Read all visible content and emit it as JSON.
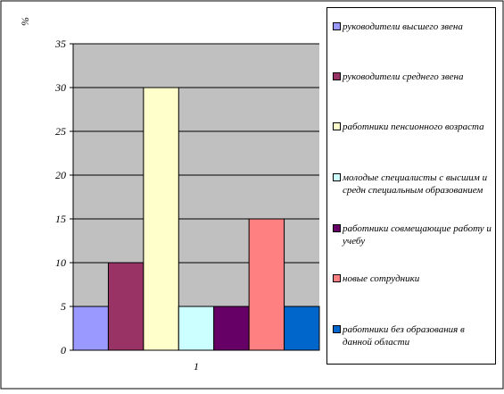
{
  "chart_data": {
    "type": "bar",
    "ylabel": "%",
    "xlabel": "",
    "categories": [
      "1"
    ],
    "ylim": [
      0,
      35
    ],
    "yticks": [
      0,
      5,
      10,
      15,
      20,
      25,
      30,
      35
    ],
    "grid": true,
    "legend_position": "right",
    "series": [
      {
        "name": "руководители высшего звена",
        "values": [
          5
        ],
        "color": "#9999ff"
      },
      {
        "name": "руководители среднего звена",
        "values": [
          10
        ],
        "color": "#993366"
      },
      {
        "name": "работники пенсионного возраста",
        "values": [
          30
        ],
        "color": "#ffffcc"
      },
      {
        "name": "молодые специалисты с высшим и средн специальным образованием",
        "values": [
          5
        ],
        "color": "#ccffff"
      },
      {
        "name": "работники совмещающие работу и учебу",
        "values": [
          5
        ],
        "color": "#660066"
      },
      {
        "name": "новые сотрудники",
        "values": [
          15
        ],
        "color": "#ff8080"
      },
      {
        "name": "работники без образования в данной области",
        "values": [
          5
        ],
        "color": "#0066cc"
      }
    ],
    "plot_background": "#c0c0c0"
  }
}
